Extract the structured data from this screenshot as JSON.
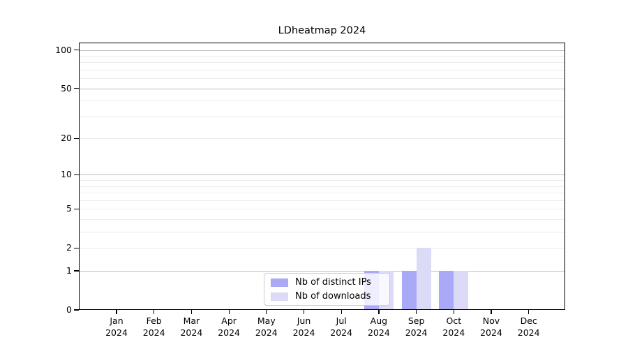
{
  "chart_data": {
    "type": "bar",
    "title": "LDheatmap 2024",
    "categories": [
      "Jan",
      "Feb",
      "Mar",
      "Apr",
      "May",
      "Jun",
      "Jul",
      "Aug",
      "Sep",
      "Oct",
      "Nov",
      "Dec"
    ],
    "x_tick_year": "2024",
    "series": [
      {
        "name": "Nb of distinct IPs",
        "color": "#a9a9f7",
        "values": [
          0,
          0,
          0,
          0,
          0,
          0,
          0,
          1,
          1,
          1,
          0,
          0
        ]
      },
      {
        "name": "Nb of downloads",
        "color": "#dbdbf8",
        "values": [
          0,
          0,
          0,
          0,
          0,
          0,
          0,
          1,
          2,
          1,
          0,
          0
        ]
      }
    ],
    "yscale": "log1p",
    "ymax": 114,
    "yticks": [
      0,
      1,
      2,
      5,
      10,
      20,
      50,
      100
    ],
    "grid_minor": [
      2,
      3,
      4,
      5,
      6,
      7,
      8,
      9,
      20,
      30,
      40,
      60,
      70,
      80,
      90
    ],
    "grid_major": [
      1,
      10,
      50,
      100
    ],
    "legend_position": "lower center",
    "xlabel": "",
    "ylabel": ""
  },
  "colors": {
    "background": "#ffffff",
    "axis": "#000000",
    "grid_minor": "#ececec",
    "grid_major": "#bdbdbd",
    "legend_border": "#cccccc"
  }
}
